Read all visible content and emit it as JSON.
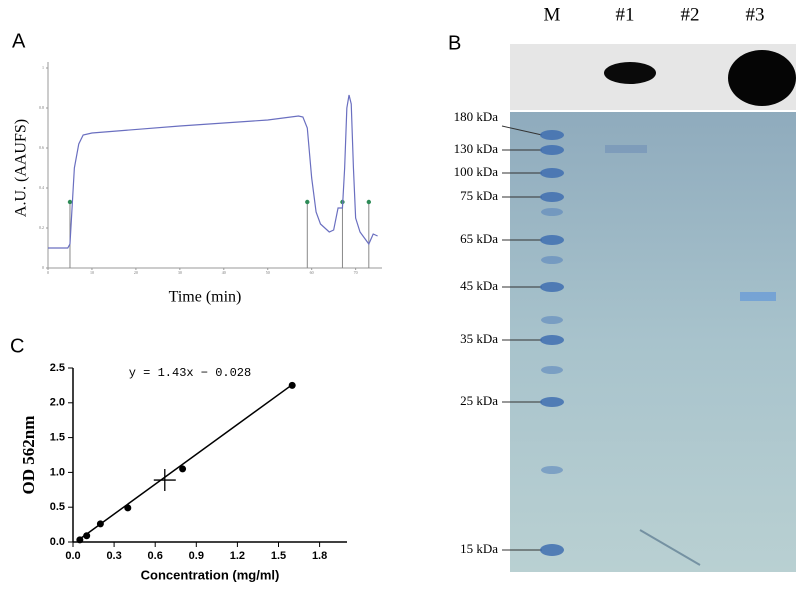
{
  "panel_labels": [
    "A",
    "B",
    "C"
  ],
  "chart_data": [
    {
      "type": "line",
      "xlabel": "Time (min)",
      "ylabel": "A.U. (AAUFS)",
      "color": "#6a6fc0",
      "x": [
        0,
        4.5,
        5,
        6,
        7,
        8,
        10,
        30,
        50,
        57,
        58,
        59,
        60,
        61,
        62,
        64,
        65,
        66,
        67,
        67.5,
        68,
        68.5,
        69,
        69.5,
        70,
        71,
        72,
        73,
        74,
        75
      ],
      "values": [
        0.1,
        0.1,
        0.12,
        0.5,
        0.62,
        0.665,
        0.675,
        0.71,
        0.74,
        0.76,
        0.755,
        0.7,
        0.45,
        0.28,
        0.22,
        0.18,
        0.19,
        0.3,
        0.3,
        0.5,
        0.8,
        0.865,
        0.82,
        0.5,
        0.25,
        0.18,
        0.15,
        0.12,
        0.17,
        0.16
      ],
      "markers": {
        "x": [
          5,
          59,
          67,
          73
        ],
        "y": 0.33,
        "color": "#2e8b57"
      },
      "xlim": [
        0,
        76
      ],
      "xticks": [
        0,
        10,
        20,
        30,
        40,
        50,
        60,
        70
      ],
      "ylim": [
        0,
        1
      ],
      "yticks": [
        0,
        0.2,
        0.4,
        0.6,
        0.8,
        1
      ]
    },
    {
      "type": "scatter",
      "xlabel": "Concentration (mg/ml)",
      "ylabel": "OD 562nm",
      "color": "#000000",
      "x": [
        0.05,
        0.1,
        0.2,
        0.4,
        0.8,
        1.6
      ],
      "values": [
        0.03,
        0.09,
        0.26,
        0.49,
        1.05,
        2.25
      ],
      "sample": {
        "x": 0.67,
        "y": 0.89
      },
      "fit": {
        "slope": 1.43,
        "intercept": -0.028,
        "label": "y = 1.43x − 0.028"
      },
      "xlim": [
        0,
        2.0
      ],
      "xticks": [
        {
          "value": 0,
          "label": "0.0"
        },
        0.3,
        0.6,
        0.9,
        1.2,
        1.5,
        1.8
      ],
      "ylim": [
        0,
        2.5
      ],
      "yticks": [
        {
          "value": 0,
          "label": "0.0"
        },
        0.5,
        {
          "value": 1,
          "label": "1.0"
        },
        1.5,
        {
          "value": 2,
          "label": "2.0"
        },
        2.5
      ]
    }
  ],
  "gel": {
    "lanes": [
      "M",
      "#1",
      "#2",
      "#3"
    ],
    "marker_labels": [
      "180 kDa",
      "130 kDa",
      "100 kDa",
      "75 kDa",
      "65 kDa",
      "45 kDa",
      "35 kDa",
      "25 kDa",
      "15 kDa"
    ]
  }
}
